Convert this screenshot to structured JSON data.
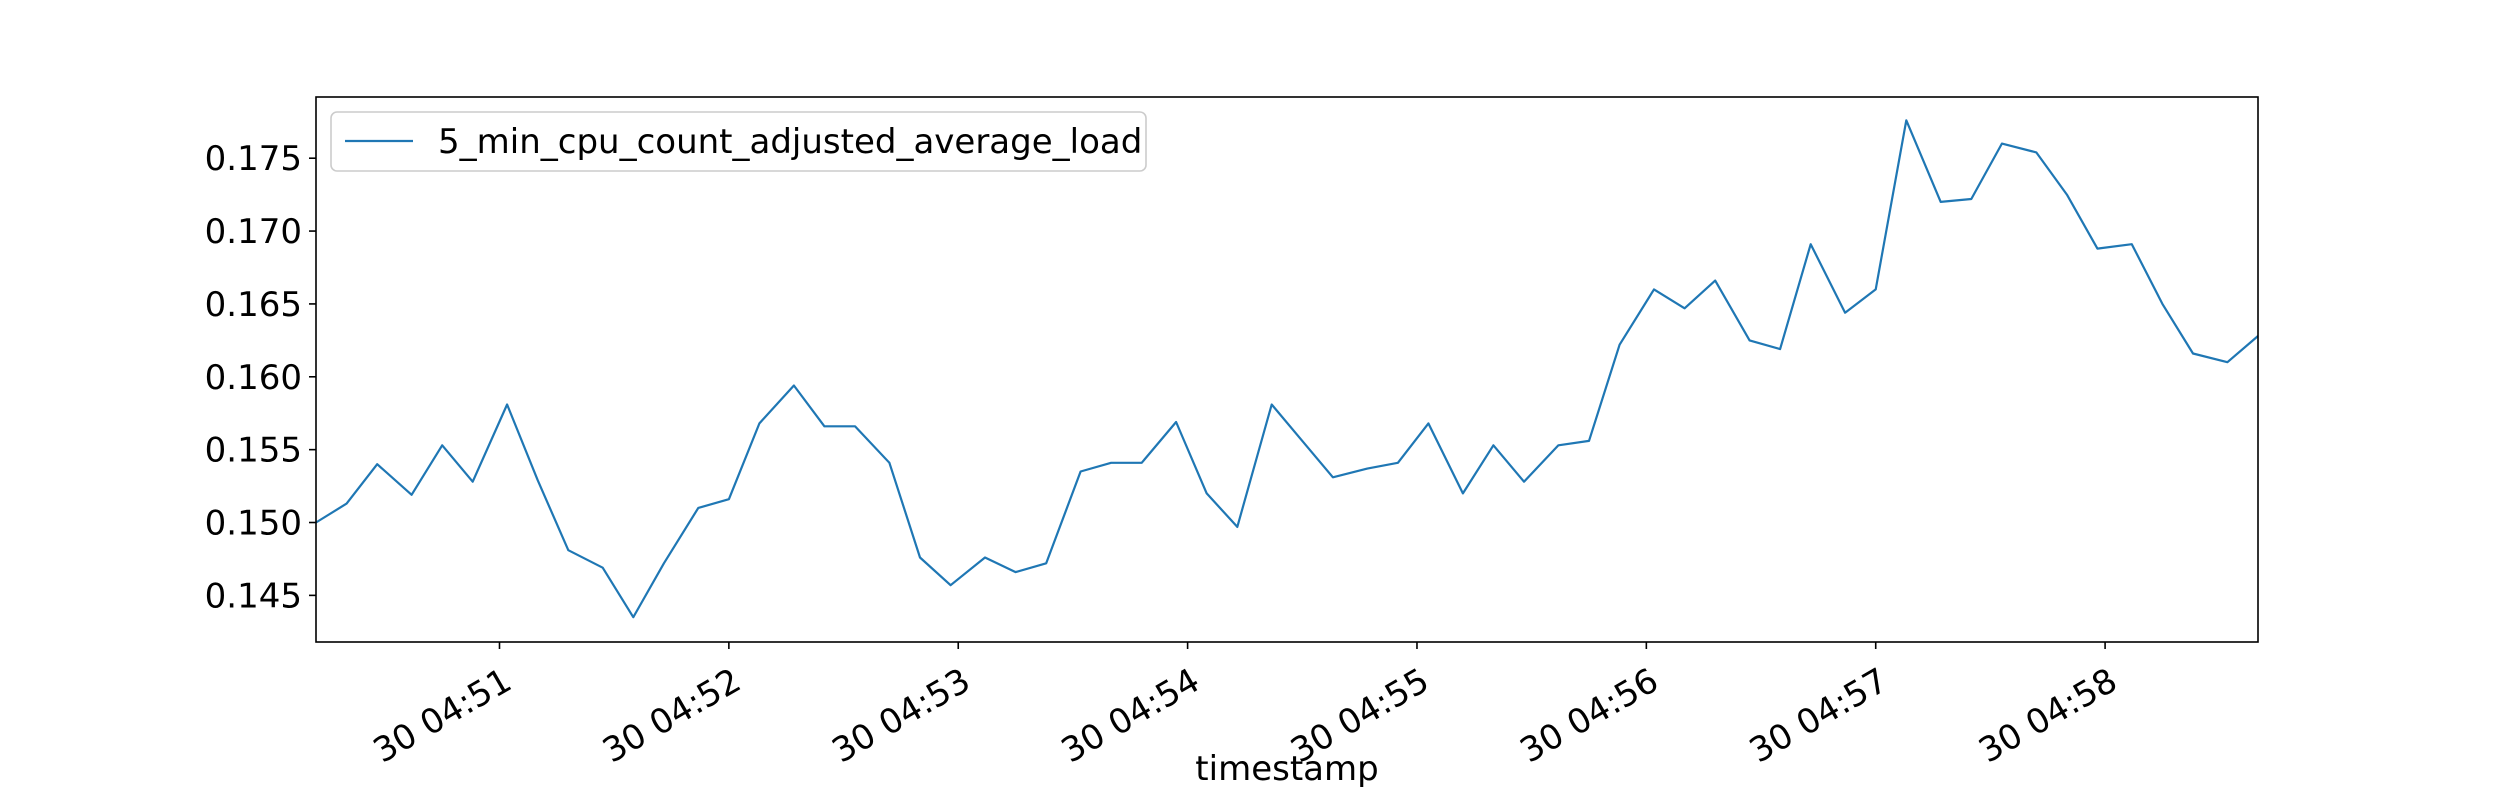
{
  "chart_data": {
    "type": "line",
    "title": "",
    "xlabel": "timestamp",
    "ylabel": "",
    "x_tick_labels": [
      "30 04:51",
      "30 04:52",
      "30 04:53",
      "30 04:54",
      "30 04:55",
      "30 04:56",
      "30 04:57",
      "30 04:58"
    ],
    "x_tick_times": [
      "04:51:00",
      "04:52:00",
      "04:53:00",
      "04:54:00",
      "04:55:00",
      "04:56:00",
      "04:57:00",
      "04:58:00"
    ],
    "xlim": [
      "04:50:12",
      "04:58:40"
    ],
    "y_tick_labels": [
      "0.145",
      "0.150",
      "0.155",
      "0.160",
      "0.165",
      "0.170",
      "0.175"
    ],
    "y_ticks": [
      0.145,
      0.15,
      0.155,
      0.16,
      0.165,
      0.17,
      0.175
    ],
    "ylim": [
      0.1418,
      0.1792
    ],
    "grid": false,
    "legend_position": "top-left",
    "colors": {
      "series": "#1f77b4",
      "axes": "#000000",
      "background": "#ffffff"
    },
    "series": [
      {
        "name": "5_min_cpu_count_adjusted_average_load",
        "x": [
          "04:50:12",
          "04:50:20",
          "04:50:28",
          "04:50:37",
          "04:50:45",
          "04:50:53",
          "04:51:02",
          "04:51:10",
          "04:51:18",
          "04:51:27",
          "04:51:35",
          "04:51:43",
          "04:51:52",
          "04:52:00",
          "04:52:08",
          "04:52:17",
          "04:52:25",
          "04:52:33",
          "04:52:42",
          "04:52:50",
          "04:52:58",
          "04:53:07",
          "04:53:15",
          "04:53:23",
          "04:53:32",
          "04:53:40",
          "04:53:48",
          "04:53:57",
          "04:54:05",
          "04:54:13",
          "04:54:22",
          "04:54:30",
          "04:54:38",
          "04:54:47",
          "04:54:55",
          "04:55:03",
          "04:55:12",
          "04:55:20",
          "04:55:28",
          "04:55:37",
          "04:55:45",
          "04:55:53",
          "04:56:02",
          "04:56:10",
          "04:56:18",
          "04:56:27",
          "04:56:35",
          "04:56:43",
          "04:56:52",
          "04:57:00",
          "04:57:08",
          "04:57:17",
          "04:57:25",
          "04:57:33",
          "04:57:42",
          "04:57:50",
          "04:57:58",
          "04:58:07",
          "04:58:15",
          "04:58:23",
          "04:58:32",
          "04:58:40"
        ],
        "values": [
          0.15,
          0.1513,
          0.154,
          0.1519,
          0.1553,
          0.1528,
          0.1581,
          0.1529,
          0.1481,
          0.1469,
          0.1435,
          0.1472,
          0.151,
          0.1516,
          0.1568,
          0.1594,
          0.1566,
          0.1566,
          0.1541,
          0.1476,
          0.1457,
          0.1476,
          0.1466,
          0.1472,
          0.1535,
          0.1541,
          0.1541,
          0.1569,
          0.152,
          0.1497,
          0.1581,
          0.1556,
          0.1531,
          0.1537,
          0.1541,
          0.1568,
          0.152,
          0.1553,
          0.1528,
          0.1553,
          0.1556,
          0.1622,
          0.166,
          0.1647,
          0.1666,
          0.1625,
          0.1619,
          0.1691,
          0.1644,
          0.166,
          0.1776,
          0.172,
          0.1722,
          0.176,
          0.1754,
          0.1725,
          0.1688,
          0.1691,
          0.165,
          0.1616,
          0.161,
          0.1628
        ]
      }
    ]
  }
}
